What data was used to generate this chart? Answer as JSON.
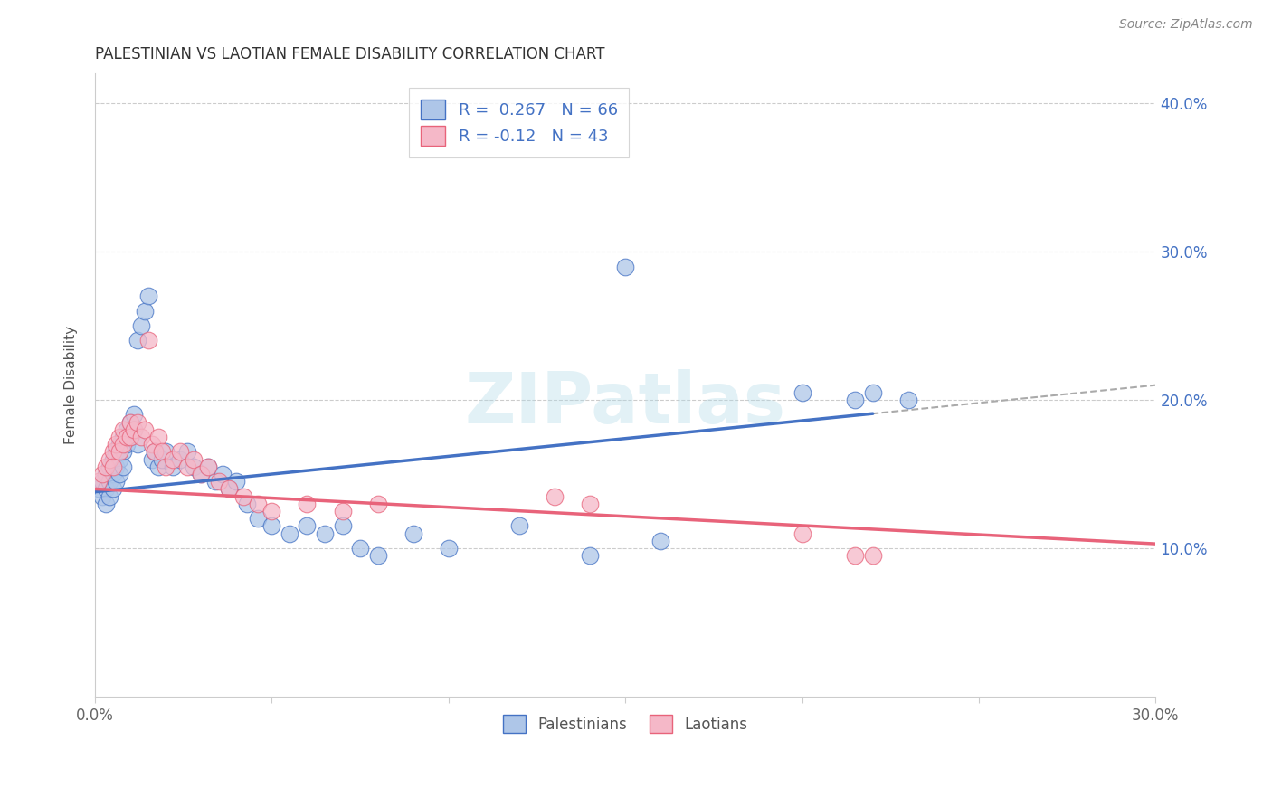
{
  "title": "PALESTINIAN VS LAOTIAN FEMALE DISABILITY CORRELATION CHART",
  "source": "Source: ZipAtlas.com",
  "ylabel": "Female Disability",
  "x_min": 0.0,
  "x_max": 0.3,
  "y_min": 0.0,
  "y_max": 0.42,
  "pal_color": "#aec6e8",
  "lao_color": "#f5b8c8",
  "pal_line_color": "#4472c4",
  "lao_line_color": "#e8637a",
  "R_pal": 0.267,
  "N_pal": 66,
  "R_lao": -0.12,
  "N_lao": 43,
  "legend_label_pal": "Palestinians",
  "legend_label_lao": "Laotians",
  "watermark": "ZIPatlas",
  "pal_scatter_x": [
    0.001,
    0.002,
    0.002,
    0.003,
    0.003,
    0.003,
    0.004,
    0.004,
    0.004,
    0.005,
    0.005,
    0.005,
    0.006,
    0.006,
    0.006,
    0.007,
    0.007,
    0.007,
    0.008,
    0.008,
    0.008,
    0.009,
    0.009,
    0.01,
    0.01,
    0.011,
    0.011,
    0.012,
    0.012,
    0.013,
    0.014,
    0.015,
    0.016,
    0.017,
    0.018,
    0.019,
    0.02,
    0.022,
    0.024,
    0.026,
    0.028,
    0.03,
    0.032,
    0.034,
    0.036,
    0.038,
    0.04,
    0.043,
    0.046,
    0.05,
    0.055,
    0.06,
    0.065,
    0.07,
    0.075,
    0.08,
    0.09,
    0.1,
    0.12,
    0.14,
    0.16,
    0.15,
    0.2,
    0.215,
    0.22,
    0.23
  ],
  "pal_scatter_y": [
    0.14,
    0.145,
    0.135,
    0.15,
    0.14,
    0.13,
    0.155,
    0.145,
    0.135,
    0.16,
    0.15,
    0.14,
    0.165,
    0.155,
    0.145,
    0.17,
    0.16,
    0.15,
    0.175,
    0.165,
    0.155,
    0.18,
    0.17,
    0.185,
    0.175,
    0.19,
    0.18,
    0.17,
    0.24,
    0.25,
    0.26,
    0.27,
    0.16,
    0.165,
    0.155,
    0.16,
    0.165,
    0.155,
    0.16,
    0.165,
    0.155,
    0.15,
    0.155,
    0.145,
    0.15,
    0.14,
    0.145,
    0.13,
    0.12,
    0.115,
    0.11,
    0.115,
    0.11,
    0.115,
    0.1,
    0.095,
    0.11,
    0.1,
    0.115,
    0.095,
    0.105,
    0.29,
    0.205,
    0.2,
    0.205,
    0.2
  ],
  "lao_scatter_x": [
    0.001,
    0.002,
    0.003,
    0.004,
    0.005,
    0.005,
    0.006,
    0.007,
    0.007,
    0.008,
    0.008,
    0.009,
    0.01,
    0.01,
    0.011,
    0.012,
    0.013,
    0.014,
    0.015,
    0.016,
    0.017,
    0.018,
    0.019,
    0.02,
    0.022,
    0.024,
    0.026,
    0.028,
    0.03,
    0.032,
    0.035,
    0.038,
    0.042,
    0.046,
    0.05,
    0.06,
    0.07,
    0.08,
    0.13,
    0.14,
    0.2,
    0.215,
    0.22
  ],
  "lao_scatter_y": [
    0.145,
    0.15,
    0.155,
    0.16,
    0.165,
    0.155,
    0.17,
    0.175,
    0.165,
    0.18,
    0.17,
    0.175,
    0.185,
    0.175,
    0.18,
    0.185,
    0.175,
    0.18,
    0.24,
    0.17,
    0.165,
    0.175,
    0.165,
    0.155,
    0.16,
    0.165,
    0.155,
    0.16,
    0.15,
    0.155,
    0.145,
    0.14,
    0.135,
    0.13,
    0.125,
    0.13,
    0.125,
    0.13,
    0.135,
    0.13,
    0.11,
    0.095,
    0.095
  ]
}
